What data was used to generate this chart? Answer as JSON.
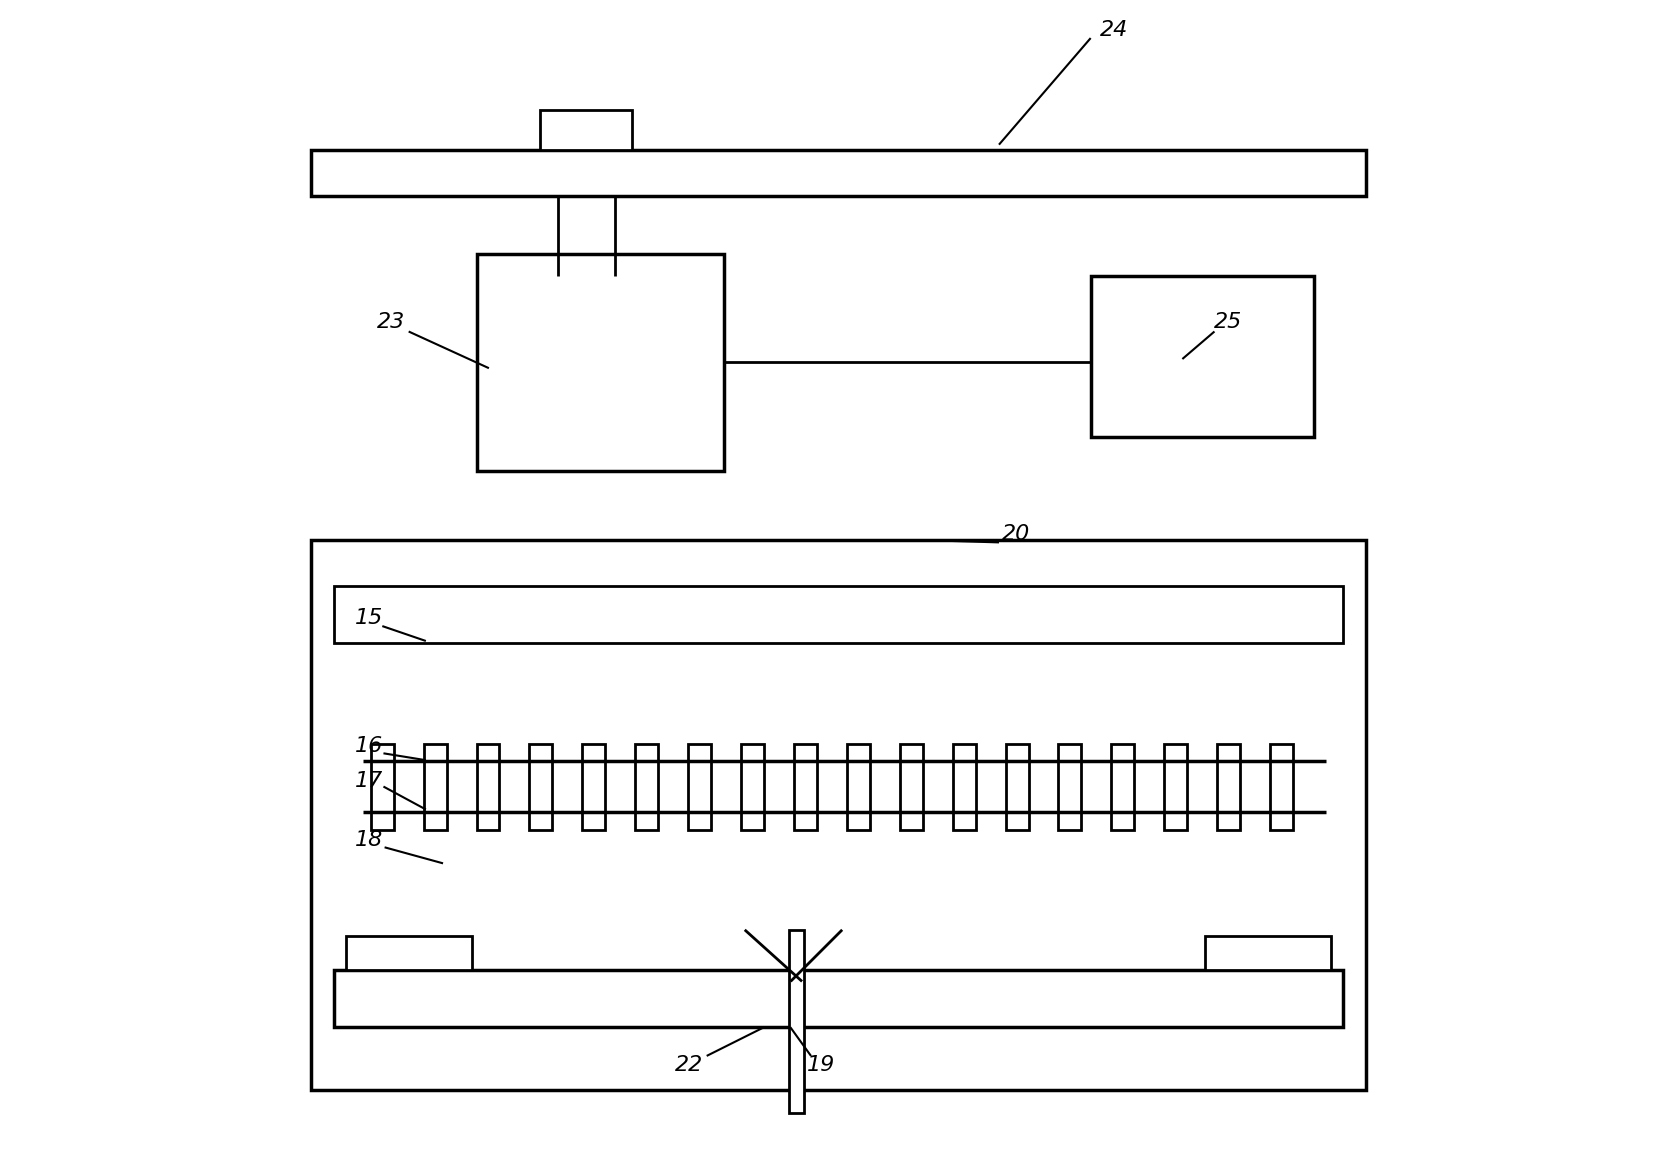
{
  "bg_color": "#ffffff",
  "line_color": "#000000",
  "lw_thin": 1.5,
  "lw_med": 2.0,
  "lw_thick": 2.5,
  "figsize": [
    16.77,
    11.49
  ],
  "dpi": 100
}
